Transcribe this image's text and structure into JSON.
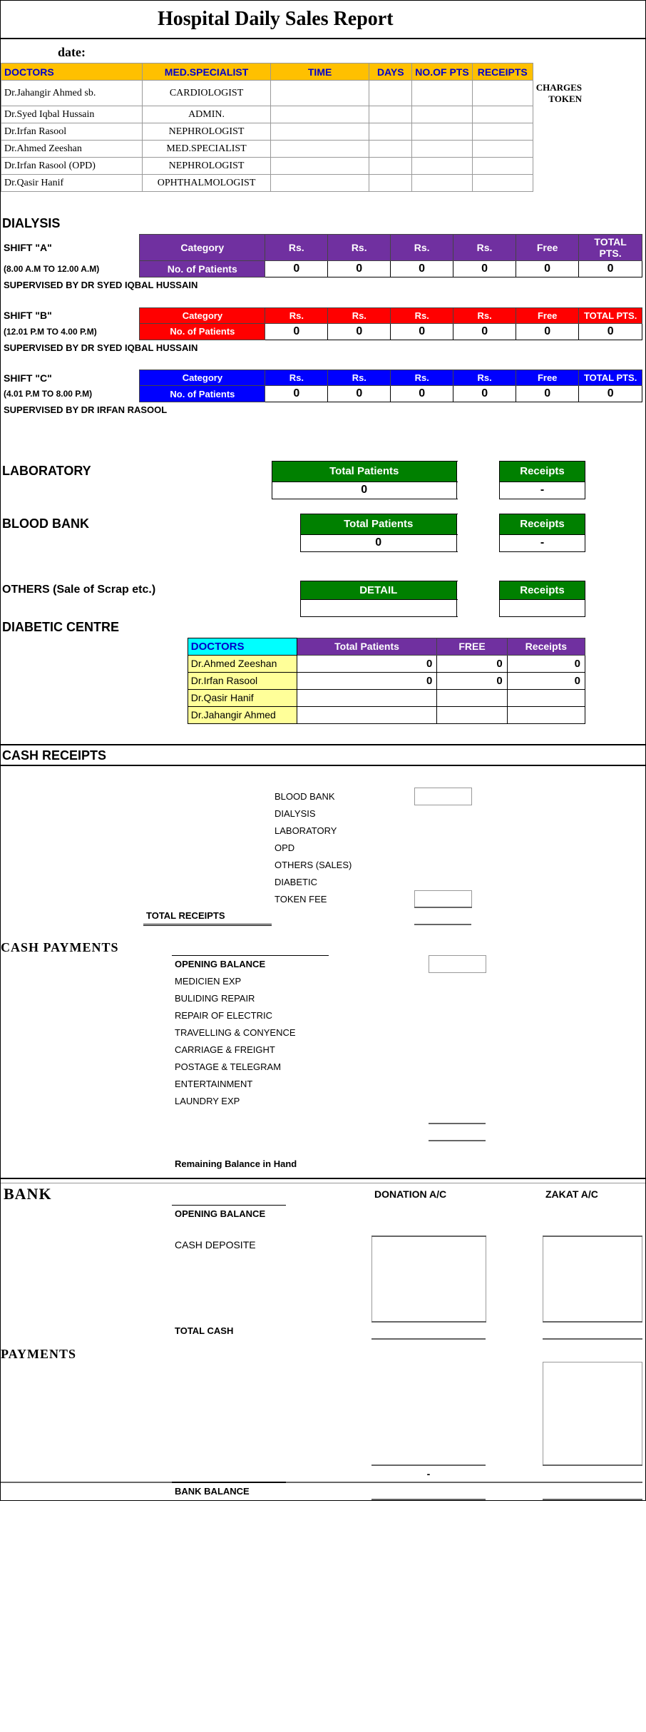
{
  "title": "Hospital Daily Sales Report",
  "date_label": "date:",
  "doctors_table": {
    "headers": [
      "DOCTORS",
      "MED.SPECIALIST",
      "TIME",
      "DAYS",
      "NO.OF PTS",
      "RECEIPTS"
    ],
    "charges_token": "CHARGES TOKEN",
    "rows": [
      {
        "doc": "Dr.Jahangir Ahmed sb.",
        "spec": "CARDIOLOGIST"
      },
      {
        "doc": "Dr.Syed Iqbal Hussain",
        "spec": "ADMIN."
      },
      {
        "doc": "Dr.Irfan Rasool",
        "spec": "NEPHROLOGIST"
      },
      {
        "doc": "Dr.Ahmed Zeeshan",
        "spec": "MED.SPECIALIST"
      },
      {
        "doc": "Dr.Irfan Rasool (OPD)",
        "spec": "NEPHROLOGIST"
      },
      {
        "doc": "Dr.Qasir Hanif",
        "spec": "OPHTHALMOLOGIST"
      }
    ]
  },
  "dialysis": {
    "title": "DIALYSIS",
    "shifts": [
      {
        "name": "SHIFT \"A\"",
        "time": "(8.00 A.M TO 12.00 A.M)",
        "color": "purple",
        "category": "Category",
        "patients_label": "No. of Patients",
        "cols": [
          "Rs.",
          "Rs.",
          "Rs.",
          "Rs.",
          "Free",
          "TOTAL PTS."
        ],
        "vals": [
          "0",
          "0",
          "0",
          "0",
          "0",
          "0"
        ],
        "super": "SUPERVISED BY DR SYED IQBAL HUSSAIN"
      },
      {
        "name": "SHIFT \"B\"",
        "time": "(12.01 P.M TO 4.00 P.M)",
        "color": "red",
        "category": "Category",
        "patients_label": "No. of Patients",
        "cols": [
          "Rs.",
          "Rs.",
          "Rs.",
          "Rs.",
          "Free",
          "TOTAL PTS."
        ],
        "vals": [
          "0",
          "0",
          "0",
          "0",
          "0",
          "0"
        ],
        "super": "SUPERVISED BY DR SYED IQBAL HUSSAIN"
      },
      {
        "name": "SHIFT \"C\"",
        "time": "(4.01 P.M TO 8.00 P.M)",
        "color": "blue",
        "category": "Category",
        "patients_label": "No. of Patients",
        "cols": [
          "Rs.",
          "Rs.",
          "Rs.",
          "Rs.",
          "Free",
          "TOTAL PTS."
        ],
        "vals": [
          "0",
          "0",
          "0",
          "0",
          "0",
          "0"
        ],
        "super": "SUPERVISED BY DR IRFAN RASOOL"
      }
    ]
  },
  "laboratory": {
    "title": "LABORATORY",
    "h1": "Total Patients",
    "h2": "Receipts",
    "v1": "0",
    "v2": "-"
  },
  "blood_bank": {
    "title": "BLOOD BANK",
    "h1": "Total Patients",
    "h2": "Receipts",
    "v1": "0",
    "v2": "-"
  },
  "others": {
    "title": "OTHERS (Sale of Scrap etc.)",
    "h1": "DETAIL",
    "h2": "Receipts"
  },
  "diabetic": {
    "title": "DIABETIC CENTRE",
    "head": [
      "DOCTORS",
      "Total Patients",
      "FREE",
      "Receipts"
    ],
    "rows": [
      {
        "doc": "Dr.Ahmed Zeeshan",
        "tp": "0",
        "free": "0",
        "rec": "0"
      },
      {
        "doc": "Dr.Irfan Rasool",
        "tp": "0",
        "free": "0",
        "rec": "0"
      },
      {
        "doc": "Dr.Qasir Hanif",
        "tp": "",
        "free": "",
        "rec": ""
      },
      {
        "doc": "Dr.Jahangir Ahmed",
        "tp": "",
        "free": "",
        "rec": ""
      }
    ]
  },
  "cash_receipts": {
    "title": "CASH RECEIPTS",
    "items": [
      "BLOOD BANK",
      "DIALYSIS",
      "LABORATORY",
      "OPD",
      "OTHERS (SALES)",
      "DIABETIC",
      "TOKEN FEE"
    ],
    "total": "TOTAL RECEIPTS"
  },
  "cash_payments": {
    "title": "CASH PAYMENTS",
    "opening": "OPENING BALANCE",
    "items": [
      "MEDICIEN EXP",
      "BULIDING REPAIR",
      "REPAIR OF ELECTRIC",
      "TRAVELLING & CONYENCE",
      "CARRIAGE  & FREIGHT",
      "POSTAGE & TELEGRAM",
      "ENTERTAINMENT",
      "LAUNDRY EXP"
    ],
    "remaining": "Remaining Balance in Hand"
  },
  "bank": {
    "title": "BANK",
    "donation": "DONATION A/C",
    "zakat": "ZAKAT A/C",
    "opening": "OPENING BALANCE",
    "deposit": "CASH DEPOSITE",
    "total": "TOTAL CASH"
  },
  "payments": {
    "title": "PAYMENTS",
    "dash": "-",
    "balance": "BANK BALANCE"
  }
}
